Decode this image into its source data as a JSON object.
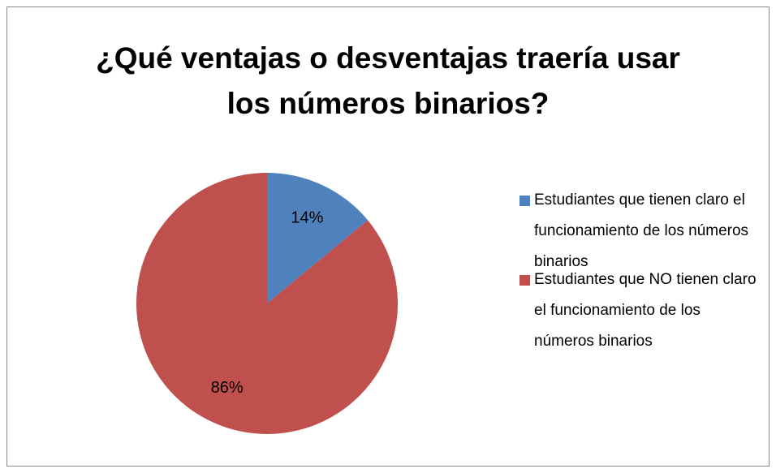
{
  "chart_data": {
    "type": "pie",
    "title": "¿Qué ventajas o desventajas traería usar los números binarios?",
    "categories": [
      "Estudiantes que tienen claro el funcionamiento de los números binarios",
      "Estudiantes que NO tienen claro el funcionamiento de los números binarios"
    ],
    "values": [
      14,
      86
    ],
    "value_labels": [
      "14%",
      "86%"
    ],
    "colors": [
      "#4f81bd",
      "#c0504d"
    ],
    "legend": "right"
  }
}
